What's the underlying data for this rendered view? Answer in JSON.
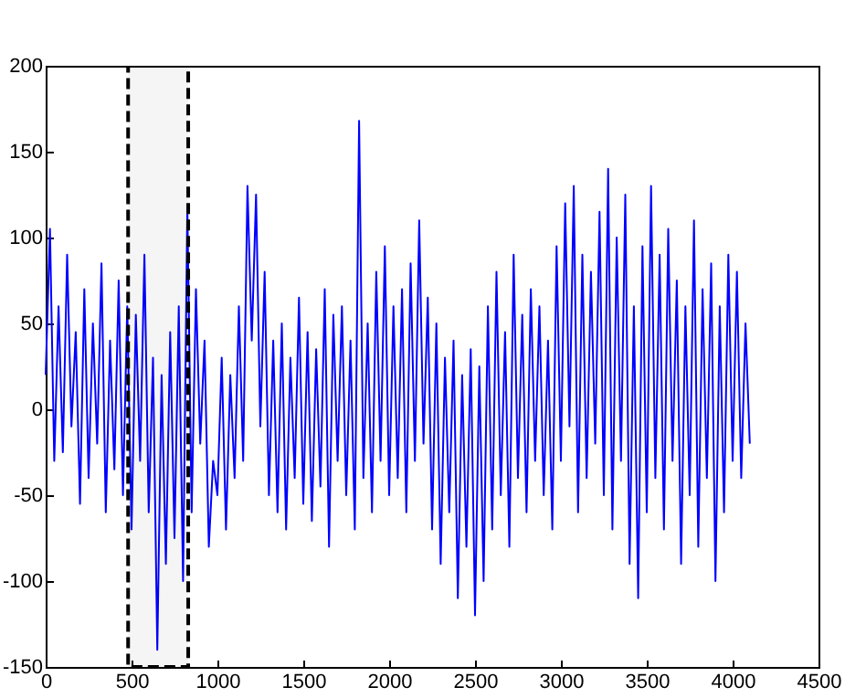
{
  "chart_data": {
    "type": "line",
    "x": [
      0,
      25,
      50,
      75,
      100,
      125,
      150,
      175,
      200,
      225,
      250,
      275,
      300,
      325,
      350,
      375,
      400,
      425,
      450,
      475,
      500,
      525,
      550,
      575,
      600,
      625,
      650,
      675,
      700,
      725,
      750,
      775,
      800,
      825,
      850,
      875,
      900,
      925,
      950,
      975,
      1000,
      1025,
      1050,
      1075,
      1100,
      1125,
      1150,
      1175,
      1200,
      1225,
      1250,
      1275,
      1300,
      1325,
      1350,
      1375,
      1400,
      1425,
      1450,
      1475,
      1500,
      1525,
      1550,
      1575,
      1600,
      1625,
      1650,
      1675,
      1700,
      1725,
      1750,
      1775,
      1800,
      1825,
      1850,
      1875,
      1900,
      1925,
      1950,
      1975,
      2000,
      2025,
      2050,
      2075,
      2100,
      2125,
      2150,
      2175,
      2200,
      2225,
      2250,
      2275,
      2300,
      2325,
      2350,
      2375,
      2400,
      2425,
      2450,
      2475,
      2500,
      2525,
      2550,
      2575,
      2600,
      2625,
      2650,
      2675,
      2700,
      2725,
      2750,
      2775,
      2800,
      2825,
      2850,
      2875,
      2900,
      2925,
      2950,
      2975,
      3000,
      3025,
      3050,
      3075,
      3100,
      3125,
      3150,
      3175,
      3200,
      3225,
      3250,
      3275,
      3300,
      3325,
      3350,
      3375,
      3400,
      3425,
      3450,
      3475,
      3500,
      3525,
      3550,
      3575,
      3600,
      3625,
      3650,
      3675,
      3700,
      3725,
      3750,
      3775,
      3800,
      3825,
      3850,
      3875,
      3900,
      3925,
      3950,
      3975,
      4000,
      4025,
      4050,
      4075,
      4100
    ],
    "series": [
      {
        "color": "#0000ff",
        "values": [
          20,
          105,
          -30,
          60,
          -25,
          90,
          -10,
          45,
          -55,
          70,
          -40,
          50,
          -20,
          85,
          -60,
          40,
          -35,
          75,
          -50,
          60,
          -70,
          55,
          -30,
          90,
          -60,
          30,
          -140,
          20,
          -90,
          45,
          -75,
          60,
          -100,
          118,
          -60,
          70,
          -20,
          40,
          -80,
          -30,
          -50,
          30,
          -70,
          20,
          -40,
          60,
          -30,
          130,
          40,
          125,
          -10,
          80,
          -50,
          40,
          -60,
          50,
          -70,
          30,
          -40,
          65,
          -55,
          45,
          -65,
          35,
          -45,
          70,
          -80,
          55,
          -30,
          60,
          -50,
          40,
          -70,
          168,
          -40,
          50,
          -60,
          80,
          -30,
          95,
          -50,
          60,
          -40,
          70,
          -60,
          85,
          -30,
          110,
          -20,
          65,
          -70,
          50,
          -90,
          30,
          -60,
          40,
          -110,
          20,
          -80,
          35,
          -120,
          25,
          -100,
          60,
          -70,
          80,
          -50,
          45,
          -80,
          90,
          -40,
          55,
          -60,
          70,
          -30,
          60,
          -50,
          40,
          -70,
          95,
          -30,
          120,
          -10,
          130,
          -60,
          90,
          -40,
          80,
          -20,
          115,
          -50,
          140,
          -70,
          100,
          -30,
          125,
          -90,
          60,
          -110,
          95,
          -60,
          130,
          -40,
          90,
          -70,
          105,
          -30,
          75,
          -90,
          60,
          -50,
          110,
          -80,
          70,
          -40,
          85,
          -100,
          60,
          -60,
          90,
          -30,
          80,
          -40,
          50,
          -20
        ]
      }
    ],
    "xlim": [
      0,
      4500
    ],
    "xticks": [
      0,
      500,
      1000,
      1500,
      2000,
      2500,
      3000,
      3500,
      4000,
      4500
    ],
    "ylim": [
      -150,
      200
    ],
    "yticks": [
      -150,
      -100,
      -50,
      0,
      50,
      100,
      150,
      200
    ],
    "bands": [
      {
        "axis": "x",
        "from": 480,
        "to": 830,
        "color": "#000000"
      }
    ]
  }
}
